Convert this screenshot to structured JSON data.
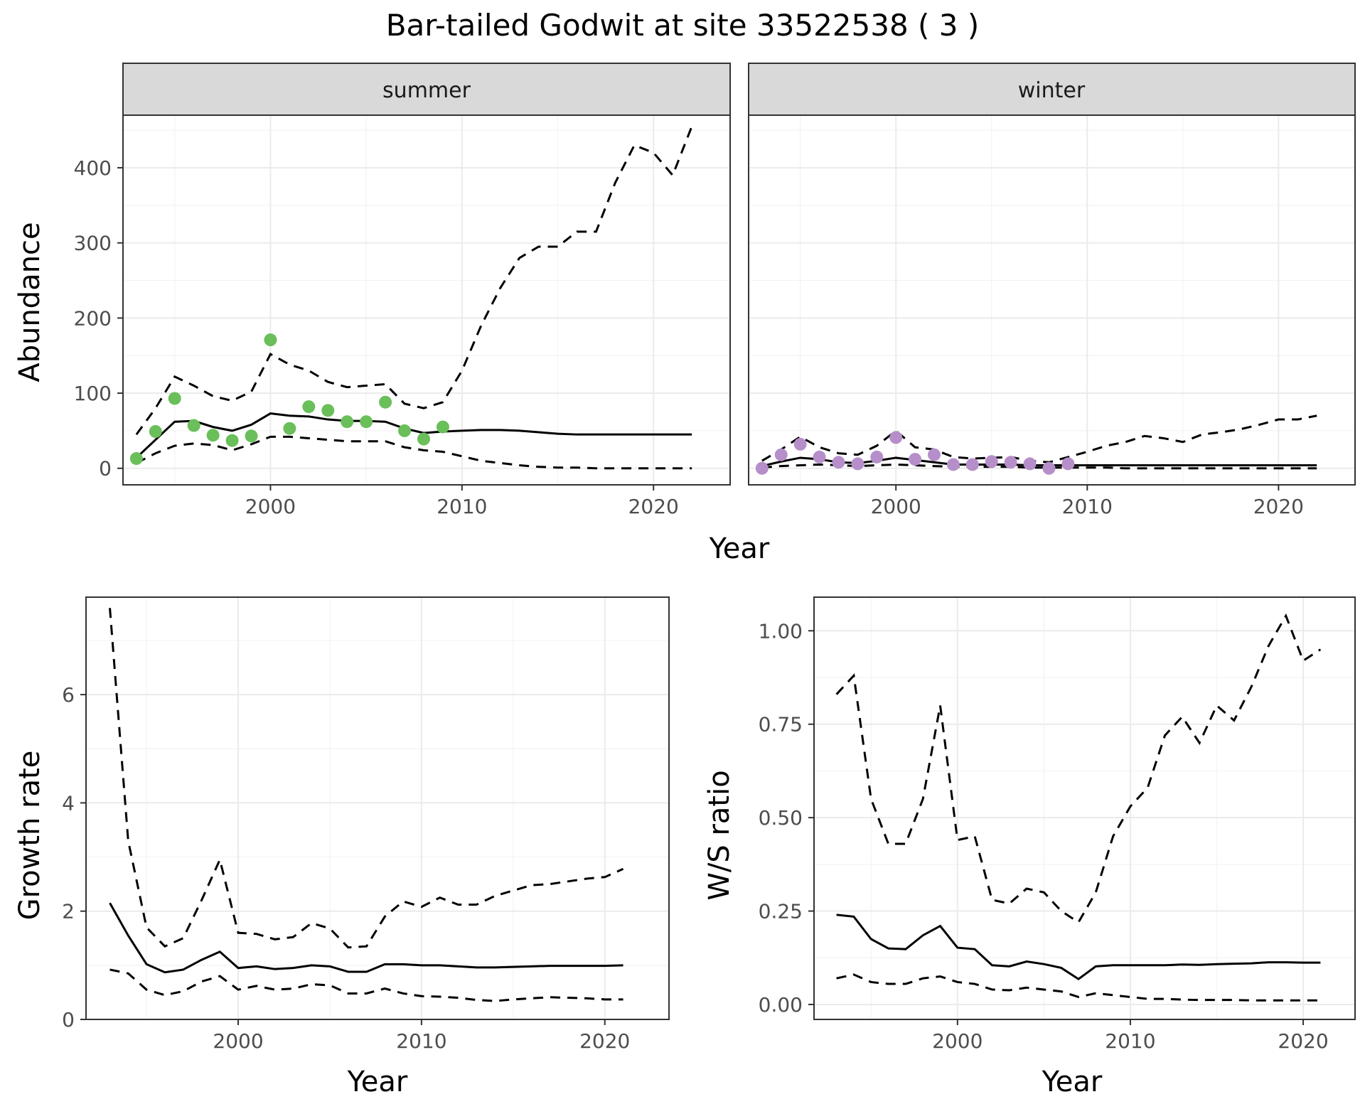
{
  "title": "Bar-tailed Godwit at site 33522538 ( 3 )",
  "colors": {
    "summer_points": "#6abf5a",
    "winter_points": "#b68fca"
  },
  "chart_data": [
    {
      "type": "line",
      "facets": [
        "summer",
        "winter"
      ],
      "xlabel": "Year",
      "ylabel": "Abundance",
      "xlim": [
        1992.3,
        2024.0
      ],
      "ylim": [
        -22,
        470
      ],
      "xticks": [
        "2000",
        "2010",
        "2020"
      ],
      "yticks": [
        "0",
        "100",
        "200",
        "300",
        "400"
      ],
      "grid": true,
      "panels": {
        "summer": {
          "x": [
            1993,
            1994,
            1995,
            1996,
            1997,
            1998,
            1999,
            2000,
            2001,
            2002,
            2003,
            2004,
            2005,
            2006,
            2007,
            2008,
            2009,
            2010,
            2011,
            2012,
            2013,
            2014,
            2015,
            2016,
            2017,
            2018,
            2019,
            2020,
            2021,
            2022
          ],
          "mean": [
            14,
            38,
            62,
            63,
            55,
            50,
            58,
            73,
            70,
            69,
            65,
            63,
            63,
            62,
            53,
            47,
            49,
            50,
            51,
            51,
            50,
            48,
            46,
            45,
            45,
            45,
            45,
            45,
            45,
            45
          ],
          "upper": [
            45,
            80,
            122,
            110,
            96,
            90,
            102,
            152,
            138,
            130,
            115,
            108,
            110,
            112,
            86,
            80,
            88,
            130,
            190,
            240,
            280,
            295,
            295,
            315,
            315,
            380,
            430,
            420,
            390,
            455
          ],
          "lower": [
            7,
            20,
            30,
            33,
            31,
            24,
            32,
            42,
            42,
            40,
            38,
            36,
            36,
            36,
            28,
            24,
            22,
            16,
            10,
            7,
            4,
            2,
            1,
            1,
            0,
            0,
            0,
            0,
            0,
            0
          ],
          "observed_x": [
            1993,
            1994,
            1995,
            1996,
            1997,
            1998,
            1999,
            2000,
            2001,
            2002,
            2003,
            2004,
            2005,
            2006,
            2007,
            2008,
            2009
          ],
          "observed_y": [
            13,
            49,
            93,
            57,
            44,
            37,
            43,
            171,
            53,
            82,
            77,
            62,
            62,
            88,
            50,
            39,
            55
          ]
        },
        "winter": {
          "x": [
            1993,
            1994,
            1995,
            1996,
            1997,
            1998,
            1999,
            2000,
            2001,
            2002,
            2003,
            2004,
            2005,
            2006,
            2007,
            2008,
            2009,
            2010,
            2011,
            2012,
            2013,
            2014,
            2015,
            2016,
            2017,
            2018,
            2019,
            2020,
            2021,
            2022
          ],
          "mean": [
            3,
            9,
            14,
            12,
            8,
            7,
            10,
            14,
            11,
            8,
            5,
            5,
            5,
            5,
            4,
            4,
            4,
            4,
            4,
            4,
            4,
            4,
            4,
            4,
            4,
            4,
            4,
            4,
            4,
            4
          ],
          "upper": [
            10,
            25,
            42,
            28,
            20,
            18,
            30,
            50,
            28,
            25,
            15,
            13,
            14,
            15,
            10,
            8,
            15,
            22,
            30,
            35,
            43,
            40,
            35,
            45,
            48,
            52,
            58,
            65,
            65,
            70
          ],
          "lower": [
            1,
            3,
            4,
            5,
            4,
            3,
            4,
            5,
            4,
            3,
            2,
            2,
            2,
            2,
            1,
            1,
            1,
            1,
            1,
            0,
            0,
            0,
            0,
            0,
            0,
            0,
            0,
            0,
            0,
            0
          ],
          "observed_x": [
            1993,
            1994,
            1995,
            1996,
            1997,
            1998,
            1999,
            2000,
            2001,
            2002,
            2003,
            2004,
            2005,
            2006,
            2007,
            2008,
            2009
          ],
          "observed_y": [
            0,
            18,
            32,
            15,
            8,
            6,
            15,
            41,
            12,
            18,
            5,
            5,
            9,
            8,
            6,
            0,
            6
          ]
        }
      }
    },
    {
      "type": "line",
      "xlabel": "Year",
      "ylabel": "Growth rate",
      "xlim": [
        1991.7,
        2023.5
      ],
      "ylim": [
        0,
        7.8
      ],
      "xticks": [
        "2000",
        "2010",
        "2020"
      ],
      "yticks": [
        "0",
        "2",
        "4",
        "6"
      ],
      "grid": true,
      "x": [
        1993,
        1994,
        1995,
        1996,
        1997,
        1998,
        1999,
        2000,
        2001,
        2002,
        2003,
        2004,
        2005,
        2006,
        2007,
        2008,
        2009,
        2010,
        2011,
        2012,
        2013,
        2014,
        2015,
        2016,
        2017,
        2018,
        2019,
        2020,
        2021
      ],
      "mean": [
        2.15,
        1.55,
        1.02,
        0.87,
        0.92,
        1.1,
        1.25,
        0.95,
        0.98,
        0.93,
        0.95,
        1.0,
        0.98,
        0.88,
        0.88,
        1.02,
        1.02,
        1.0,
        1.0,
        0.98,
        0.96,
        0.96,
        0.97,
        0.98,
        0.99,
        0.99,
        0.99,
        0.99,
        1.0
      ],
      "upper": [
        7.6,
        3.3,
        1.7,
        1.35,
        1.5,
        2.2,
        2.95,
        1.6,
        1.58,
        1.48,
        1.52,
        1.78,
        1.68,
        1.33,
        1.35,
        1.9,
        2.18,
        2.08,
        2.25,
        2.12,
        2.12,
        2.28,
        2.38,
        2.48,
        2.5,
        2.55,
        2.6,
        2.63,
        2.78
      ],
      "lower": [
        0.92,
        0.85,
        0.55,
        0.45,
        0.52,
        0.7,
        0.8,
        0.55,
        0.62,
        0.55,
        0.57,
        0.65,
        0.63,
        0.48,
        0.48,
        0.57,
        0.48,
        0.43,
        0.42,
        0.4,
        0.36,
        0.34,
        0.37,
        0.39,
        0.41,
        0.4,
        0.39,
        0.37,
        0.37
      ]
    },
    {
      "type": "line",
      "xlabel": "Year",
      "ylabel": "W/S ratio",
      "xlim": [
        1991.7,
        2023.0
      ],
      "ylim": [
        -0.04,
        1.09
      ],
      "xticks": [
        "2000",
        "2010",
        "2020"
      ],
      "yticks": [
        "0.00",
        "0.25",
        "0.50",
        "0.75",
        "1.00"
      ],
      "grid": true,
      "x": [
        1993,
        1994,
        1995,
        1996,
        1997,
        1998,
        1999,
        2000,
        2001,
        2002,
        2003,
        2004,
        2005,
        2006,
        2007,
        2008,
        2009,
        2010,
        2011,
        2012,
        2013,
        2014,
        2015,
        2016,
        2017,
        2018,
        2019,
        2020,
        2021
      ],
      "mean": [
        0.24,
        0.235,
        0.175,
        0.15,
        0.148,
        0.185,
        0.21,
        0.152,
        0.148,
        0.105,
        0.102,
        0.115,
        0.108,
        0.098,
        0.068,
        0.102,
        0.105,
        0.105,
        0.105,
        0.105,
        0.107,
        0.106,
        0.108,
        0.109,
        0.11,
        0.113,
        0.113,
        0.112,
        0.112
      ],
      "upper": [
        0.83,
        0.88,
        0.55,
        0.43,
        0.43,
        0.55,
        0.8,
        0.44,
        0.45,
        0.28,
        0.27,
        0.31,
        0.3,
        0.25,
        0.22,
        0.3,
        0.45,
        0.53,
        0.58,
        0.72,
        0.77,
        0.7,
        0.8,
        0.76,
        0.85,
        0.96,
        1.04,
        0.92,
        0.95
      ],
      "lower": [
        0.07,
        0.08,
        0.06,
        0.055,
        0.055,
        0.07,
        0.075,
        0.06,
        0.055,
        0.04,
        0.038,
        0.045,
        0.04,
        0.035,
        0.02,
        0.03,
        0.025,
        0.02,
        0.015,
        0.015,
        0.013,
        0.012,
        0.012,
        0.012,
        0.011,
        0.011,
        0.011,
        0.011,
        0.011
      ]
    }
  ]
}
